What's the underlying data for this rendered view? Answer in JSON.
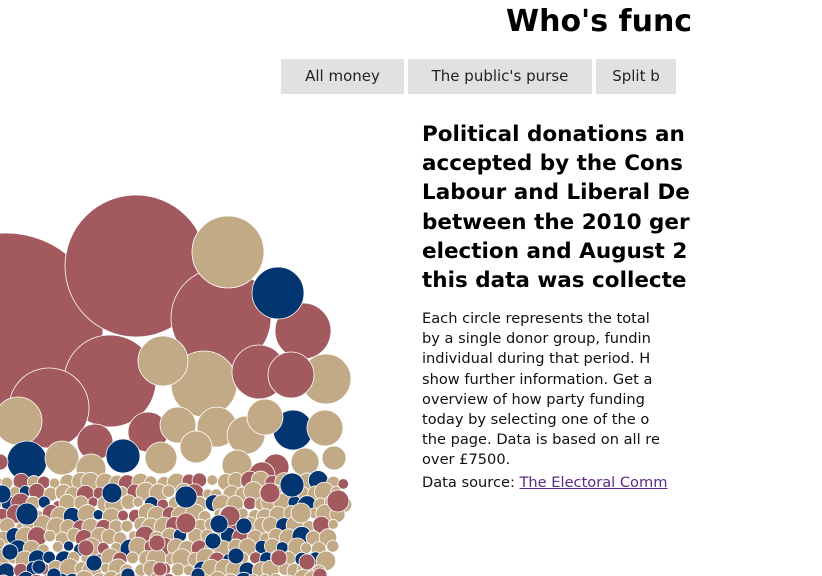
{
  "page": {
    "title": "Who's func"
  },
  "tabs": [
    {
      "label": "All money",
      "active": true
    },
    {
      "label": "The public's purse",
      "active": false
    },
    {
      "label": "Split b",
      "active": false
    }
  ],
  "headline": "Political donations and ... accepted by the Cons... Labour and Liberal De... between the 2010 ger... election and August 2... this data was collecte...",
  "headline_lines": [
    "Political donations an",
    "accepted by the Cons",
    "Labour and Liberal De",
    "between the 2010 ger",
    "election and August 2",
    "this data was collecte"
  ],
  "description_lines": [
    "Each circle represents the total",
    "by a single donor group, fundin",
    "individual during that period. H",
    "show further information. Get a",
    "overview of how party funding",
    "today by selecting one of the o",
    "the page. Data is based on all re",
    "over £7500."
  ],
  "source": {
    "label": "Data source:",
    "link_text": "The Electoral Comm"
  },
  "colors": {
    "conservative": "#033570",
    "labour": "#a25a5e",
    "libdem": "#c3aa86",
    "tab_bg": "#e1e1e1",
    "link": "#5b2a86"
  },
  "icons": {
    "bubble": "donor-bubble"
  }
}
